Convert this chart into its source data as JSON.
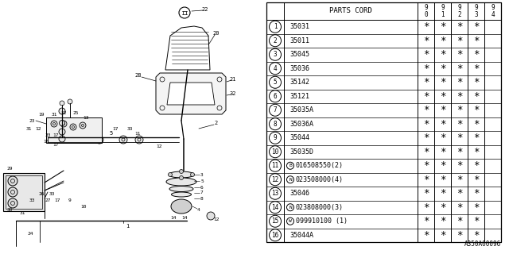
{
  "bg_color": "#ffffff",
  "watermark": "A350A00096",
  "table": {
    "rows": [
      {
        "num": 1,
        "part": "35031",
        "prefix": "",
        "marks": [
          true,
          true,
          true,
          true,
          false
        ]
      },
      {
        "num": 2,
        "part": "35011",
        "prefix": "",
        "marks": [
          true,
          true,
          true,
          true,
          false
        ]
      },
      {
        "num": 3,
        "part": "35045",
        "prefix": "",
        "marks": [
          true,
          true,
          true,
          true,
          false
        ]
      },
      {
        "num": 4,
        "part": "35036",
        "prefix": "",
        "marks": [
          true,
          true,
          true,
          true,
          false
        ]
      },
      {
        "num": 5,
        "part": "35142",
        "prefix": "",
        "marks": [
          true,
          true,
          true,
          true,
          false
        ]
      },
      {
        "num": 6,
        "part": "35121",
        "prefix": "",
        "marks": [
          true,
          true,
          true,
          true,
          false
        ]
      },
      {
        "num": 7,
        "part": "35035A",
        "prefix": "",
        "marks": [
          true,
          true,
          true,
          true,
          false
        ]
      },
      {
        "num": 8,
        "part": "35036A",
        "prefix": "",
        "marks": [
          true,
          true,
          true,
          true,
          false
        ]
      },
      {
        "num": 9,
        "part": "35044",
        "prefix": "",
        "marks": [
          true,
          true,
          true,
          true,
          false
        ]
      },
      {
        "num": 10,
        "part": "35035D",
        "prefix": "",
        "marks": [
          true,
          true,
          true,
          true,
          false
        ]
      },
      {
        "num": 11,
        "part": "016508550(2)",
        "prefix": "B",
        "marks": [
          true,
          true,
          true,
          true,
          false
        ]
      },
      {
        "num": 12,
        "part": "023508000(4)",
        "prefix": "N",
        "marks": [
          true,
          true,
          true,
          true,
          false
        ]
      },
      {
        "num": 13,
        "part": "35046",
        "prefix": "",
        "marks": [
          true,
          true,
          true,
          true,
          false
        ]
      },
      {
        "num": 14,
        "part": "023808000(3)",
        "prefix": "N",
        "marks": [
          true,
          true,
          true,
          true,
          false
        ]
      },
      {
        "num": 15,
        "part": "099910100 (1)",
        "prefix": "W",
        "marks": [
          true,
          true,
          true,
          true,
          false
        ]
      },
      {
        "num": 16,
        "part": "35044A",
        "prefix": "",
        "marks": [
          true,
          true,
          true,
          true,
          false
        ]
      }
    ]
  }
}
